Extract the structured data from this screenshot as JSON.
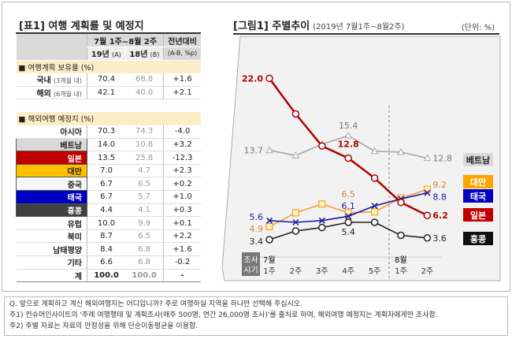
{
  "table": {
    "title": "[표1]  여행 계획률 및 예정지",
    "period": "7월 1주~8월 2주",
    "col_a": "19년",
    "col_a_note": "(A)",
    "col_b": "18년",
    "col_b_note": "(B)",
    "col_diff": "전년대비",
    "col_diff_note": "(A-B, %p)",
    "section1": "■ 여행계획 보유율 (%)",
    "rows1": [
      {
        "label": "국내",
        "note": "(3개월 내)",
        "a": "70.4",
        "b": "68.8",
        "d": "+1.6"
      },
      {
        "label": "해외",
        "note": "(6개월 내)",
        "a": "42.1",
        "b": "40.0",
        "d": "+2.1"
      }
    ],
    "section2": "■ 해외여행 예정지 (%)",
    "rows2": [
      {
        "label": "아시아",
        "a": "70.3",
        "b": "74.3",
        "d": "-4.0"
      },
      {
        "label": "베트남",
        "a": "14.0",
        "b": "10.8",
        "d": "+3.2",
        "bg": "#d9d9d9",
        "fg": "#222"
      },
      {
        "label": "일본",
        "a": "13.5",
        "b": "25.8",
        "d": "-12.3",
        "bg": "#c00000",
        "fg": "#fff"
      },
      {
        "label": "대만",
        "a": "7.0",
        "b": "4.7",
        "d": "+2.3",
        "bg": "#ffc000",
        "fg": "#222"
      },
      {
        "label": "중국",
        "a": "6.7",
        "b": "6.5",
        "d": "+0.2",
        "bg": "#f7f7f7",
        "fg": "#222"
      },
      {
        "label": "태국",
        "a": "6.7",
        "b": "5.7",
        "d": "+1.0",
        "bg": "#0000c0",
        "fg": "#fff"
      },
      {
        "label": "홍콩",
        "a": "4.4",
        "b": "4.1",
        "d": "+0.3",
        "bg": "#404040",
        "fg": "#fff"
      },
      {
        "label": "유럽",
        "a": "10.0",
        "b": "9.9",
        "d": "+0.1"
      },
      {
        "label": "북미",
        "a": "8.7",
        "b": "6.5",
        "d": "+2.2"
      },
      {
        "label": "남태평양",
        "a": "8.4",
        "b": "6.8",
        "d": "+1.6"
      },
      {
        "label": "기타",
        "a": "6.6",
        "b": "6.8",
        "d": "-0.2"
      },
      {
        "label": "계",
        "a": "100.0",
        "b": "100.0",
        "d": "-",
        "total": true
      }
    ]
  },
  "chart_data": {
    "type": "line",
    "title": "[그림1]  주별추이",
    "subtitle": "(2019년 7월1주~8월2주)",
    "unit": "(단위: %)",
    "axis_label": "조사 시기",
    "month_labels": [
      {
        "index": 0,
        "label": "7월"
      },
      {
        "index": 5,
        "label": "8월"
      }
    ],
    "categories": [
      "1주",
      "2주",
      "3주",
      "4주",
      "5주",
      "1주",
      "2주"
    ],
    "grid": false,
    "legend": "right",
    "series": [
      {
        "name": "베트남",
        "color": "#a6a6a6",
        "marker": "triangle",
        "values": [
          13.7,
          13.1,
          14.4,
          15.4,
          13.6,
          13.5,
          12.8
        ],
        "labels": {
          "0": "13.7",
          "3": "15.4",
          "6": "12.8"
        },
        "legend_bg": "#d9d9d9",
        "legend_fg": "#222"
      },
      {
        "name": "대만",
        "color": "#f0a040",
        "marker": "square",
        "values": [
          4.9,
          6.5,
          7.5,
          6.5,
          6.6,
          8.2,
          9.2
        ],
        "labels": {
          "0": "4.9",
          "3": "6.5",
          "6": "9.2"
        },
        "legend_bg": "#ffa500",
        "legend_fg": "#fff"
      },
      {
        "name": "태국",
        "color": "#1a1aa0",
        "marker": "x",
        "values": [
          5.6,
          5.4,
          5.6,
          6.1,
          7.3,
          8.1,
          8.8
        ],
        "labels": {
          "0": "5.6",
          "3": "6.1",
          "6": "8.8"
        },
        "legend_bg": "#0000c0",
        "legend_fg": "#fff"
      },
      {
        "name": "일본",
        "color": "#b00000",
        "marker": "circle",
        "values": [
          22.0,
          17.9,
          14.2,
          12.8,
          10.5,
          7.7,
          6.2
        ],
        "labels": {
          "0": "22.0",
          "3": "12.8",
          "6": "6.2"
        },
        "legend_bg": "#c00000",
        "legend_fg": "#fff"
      },
      {
        "name": "홍콩",
        "color": "#222222",
        "marker": "circle",
        "values": [
          3.4,
          4.4,
          4.8,
          5.4,
          5.4,
          3.9,
          3.6
        ],
        "labels": {
          "0": "3.4",
          "3": "5.4",
          "6": "3.6"
        },
        "legend_bg": "#111111",
        "legend_fg": "#fff"
      }
    ]
  },
  "footnotes": [
    "Q. 앞으로 계획하고 계신 해외여행지는 어디입니까? 주로 여행하실 지역을 하나만 선택해 주십시오.",
    "주1) 컨슈머인사이트의 '주례 여행행태 및 계획조사(매주 500명, 연간 26,000명 조사)'를 출처로 하며, 해외여행 예정지는 계획자에게만 조사함.",
    "주2) 주별 자료는 자료의 안정성을 위해 단순이동평균을 이용함."
  ]
}
